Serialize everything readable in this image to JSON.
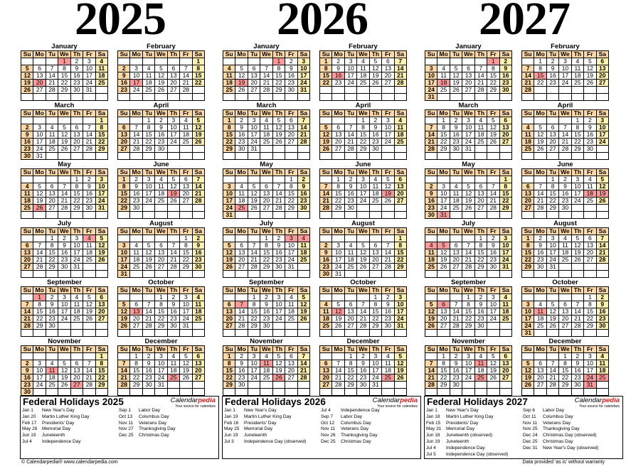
{
  "years": [
    {
      "year": "2025",
      "holidays_title": "Federal Holidays 2025",
      "holidays": [
        {
          "date": "Jan 1",
          "name": "New Year's Day"
        },
        {
          "date": "Jan 20",
          "name": "Martin Luther King Day"
        },
        {
          "date": "Feb 17",
          "name": "Presidents' Day"
        },
        {
          "date": "May 26",
          "name": "Memorial Day"
        },
        {
          "date": "Jun 19",
          "name": "Juneteenth"
        },
        {
          "date": "Jul 4",
          "name": "Independence Day"
        },
        {
          "date": "Sep 1",
          "name": "Labor Day"
        },
        {
          "date": "Oct 13",
          "name": "Columbus Day"
        },
        {
          "date": "Nov 11",
          "name": "Veterans Day"
        },
        {
          "date": "Nov 27",
          "name": "Thanksgiving Day"
        },
        {
          "date": "Dec 25",
          "name": "Christmas Day"
        }
      ]
    },
    {
      "year": "2026",
      "holidays_title": "Federal Holidays 2026",
      "holidays": [
        {
          "date": "Jan 1",
          "name": "New Year's Day"
        },
        {
          "date": "Jan 19",
          "name": "Martin Luther King Day"
        },
        {
          "date": "Feb 16",
          "name": "Presidents' Day"
        },
        {
          "date": "May 25",
          "name": "Memorial Day"
        },
        {
          "date": "Jun 19",
          "name": "Juneteenth"
        },
        {
          "date": "Jul 3",
          "name": "Independence Day (observed)"
        },
        {
          "date": "Jul 4",
          "name": "Independence Day"
        },
        {
          "date": "Sep 7",
          "name": "Labor Day"
        },
        {
          "date": "Oct 12",
          "name": "Columbus Day"
        },
        {
          "date": "Nov 11",
          "name": "Veterans Day"
        },
        {
          "date": "Nov 26",
          "name": "Thanksgiving Day"
        },
        {
          "date": "Dec 25",
          "name": "Christmas Day"
        }
      ]
    },
    {
      "year": "2027",
      "holidays_title": "Federal Holidays 2027",
      "holidays": [
        {
          "date": "Jan 1",
          "name": "New Year's Day"
        },
        {
          "date": "Jan 18",
          "name": "Martin Luther King Day"
        },
        {
          "date": "Feb 15",
          "name": "Presidents' Day"
        },
        {
          "date": "May 31",
          "name": "Memorial Day"
        },
        {
          "date": "Jun 18",
          "name": "Juneteenth (observed)"
        },
        {
          "date": "Jun 19",
          "name": "Juneteenth"
        },
        {
          "date": "Jul 4",
          "name": "Independence Day"
        },
        {
          "date": "Jul 5",
          "name": "Independence Day (observed)"
        },
        {
          "date": "Sep 6",
          "name": "Labor Day"
        },
        {
          "date": "Oct 11",
          "name": "Columbus Day"
        },
        {
          "date": "Nov 11",
          "name": "Veterans Day"
        },
        {
          "date": "Nov 25",
          "name": "Thanksgiving Day"
        },
        {
          "date": "Dec 24",
          "name": "Christmas Day (observed)"
        },
        {
          "date": "Dec 25",
          "name": "Christmas Day"
        },
        {
          "date": "Dec 31",
          "name": "New Year's Day (observed)"
        }
      ]
    }
  ],
  "month_names": [
    "January",
    "February",
    "March",
    "April",
    "May",
    "June",
    "July",
    "August",
    "September",
    "October",
    "November",
    "December"
  ],
  "weekday_headers": [
    "Su",
    "Mo",
    "Tu",
    "We",
    "Th",
    "Fr",
    "Sa"
  ],
  "brand": {
    "name_plain": "Calendar",
    "name_highlight": "pedia",
    "tagline": "Your source for calendars"
  },
  "footer": {
    "left": "© Calendarpedia®  www.calendarpedia.com",
    "right": "Data provided 'as is' without warranty"
  },
  "colors": {
    "sunday": "#ffd9a8",
    "saturday": "#fff2b3",
    "holiday": "#ff9999",
    "brand_accent": "#d62020"
  }
}
